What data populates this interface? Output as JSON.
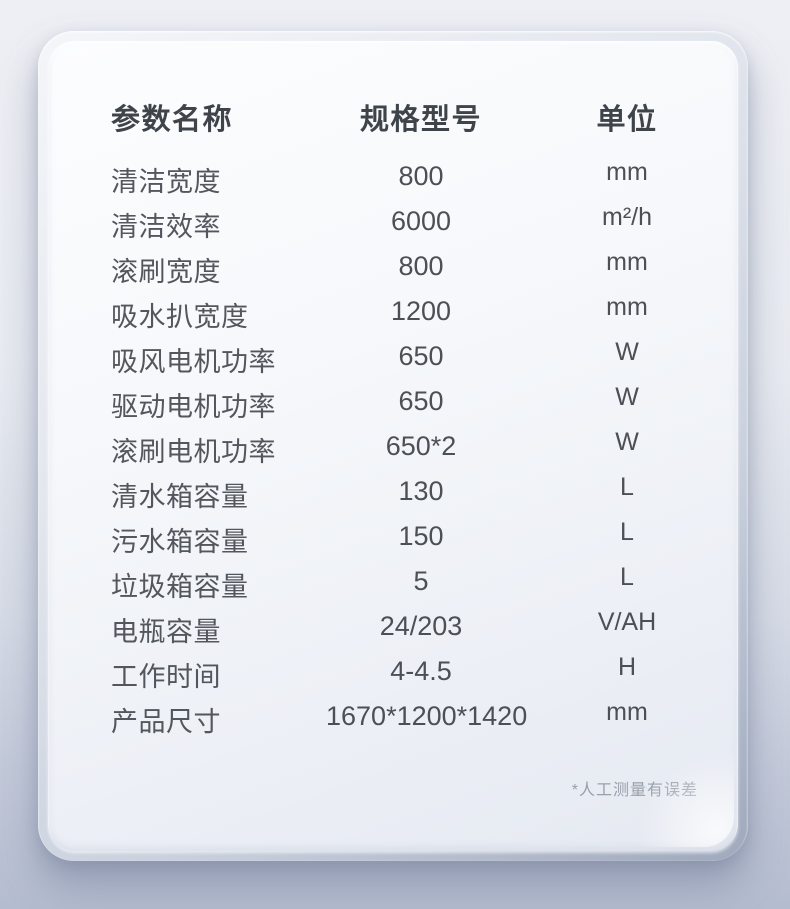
{
  "table": {
    "headers": [
      "参数名称",
      "规格型号",
      "单位"
    ],
    "rows": [
      {
        "name": "清洁宽度",
        "spec": "800",
        "unit": "mm"
      },
      {
        "name": "清洁效率",
        "spec": "6000",
        "unit": "m²/h"
      },
      {
        "name": "滚刷宽度",
        "spec": "800",
        "unit": "mm"
      },
      {
        "name": "吸水扒宽度",
        "spec": "1200",
        "unit": "mm"
      },
      {
        "name": "吸风电机功率",
        "spec": "650",
        "unit": "W"
      },
      {
        "name": "驱动电机功率",
        "spec": "650",
        "unit": "W"
      },
      {
        "name": "滚刷电机功率",
        "spec": "650*2",
        "unit": "W"
      },
      {
        "name": "清水箱容量",
        "spec": "130",
        "unit": "L"
      },
      {
        "name": "污水箱容量",
        "spec": "150",
        "unit": "L"
      },
      {
        "name": "垃圾箱容量",
        "spec": "5",
        "unit": "L"
      },
      {
        "name": "电瓶容量",
        "spec": "24/203",
        "unit": "V/AH"
      },
      {
        "name": "工作时间",
        "spec": "4-4.5",
        "unit": "H"
      },
      {
        "name": "产品尺寸",
        "spec": "1670*1200*1420",
        "unit": "mm"
      }
    ],
    "footnote": "*人工测量有误差"
  },
  "colors": {
    "background_top": "#edeff4",
    "background_bottom": "#b4bccf",
    "card_surface": "#f6f8fb",
    "header_text": "#3f434a",
    "body_text": "#53575d",
    "footnote_text": "#9aa0ab"
  }
}
